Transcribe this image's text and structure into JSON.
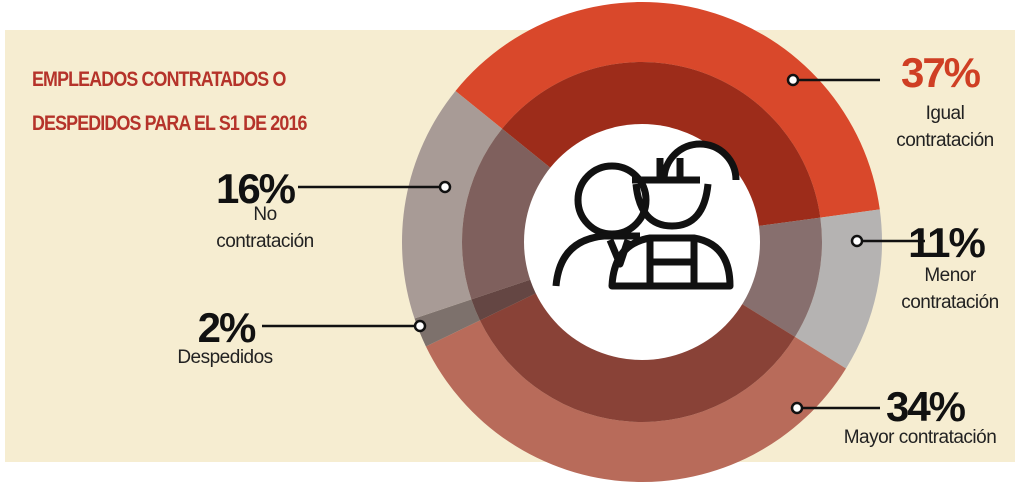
{
  "chart_data": {
    "type": "pie",
    "title": "EMPLEADOS CONTRATADOS O DESPEDIDOS PARA EL S1 DE 2016",
    "categories": [
      "Igual contratación",
      "Menor contratación",
      "Mayor contratación",
      "Despedidos",
      "No contratación"
    ],
    "values": [
      37,
      11,
      34,
      2,
      16
    ],
    "value_labels": [
      "37%",
      "11%",
      "34%",
      "2%",
      "16%"
    ],
    "colors": [
      "#d9482b",
      "#b5b3b2",
      "#b86b5a",
      "#7d716c",
      "#a89b96"
    ],
    "donut": true
  }
}
